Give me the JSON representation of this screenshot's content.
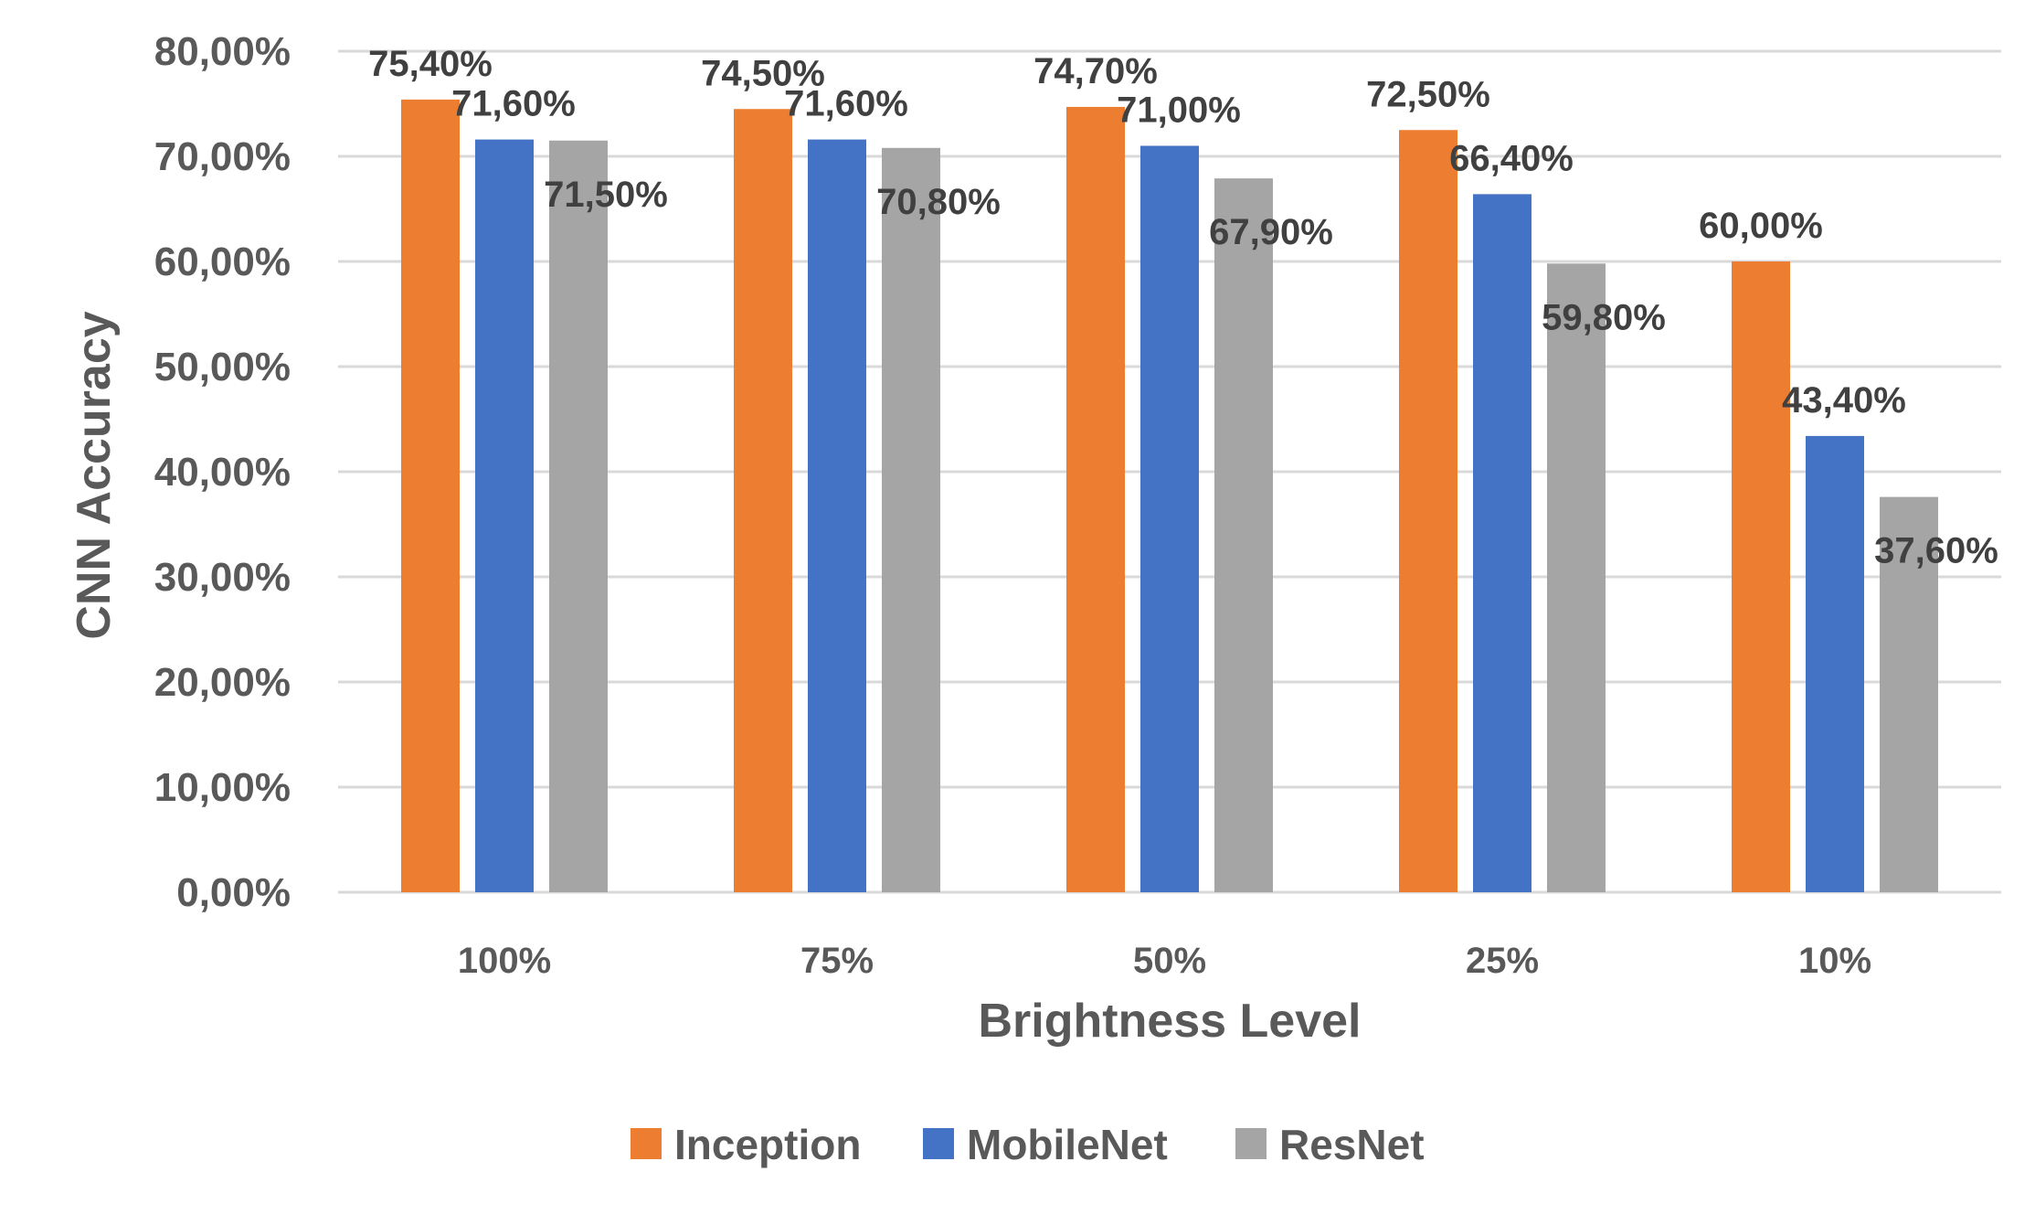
{
  "chart_data": {
    "type": "bar",
    "title": "",
    "xlabel": "Brightness Level",
    "ylabel": "CNN Accuracy",
    "ylim": [
      0,
      80
    ],
    "y_ticks": [
      "0,00%",
      "10,00%",
      "20,00%",
      "30,00%",
      "40,00%",
      "50,00%",
      "60,00%",
      "70,00%",
      "80,00%"
    ],
    "categories": [
      "100%",
      "75%",
      "50%",
      "25%",
      "10%"
    ],
    "grid": true,
    "legend_position": "bottom",
    "series": [
      {
        "name": "Inception",
        "color": "#ED7D31",
        "values": [
          75.4,
          74.5,
          74.7,
          72.5,
          60.0
        ],
        "labels": [
          "75,40%",
          "74,50%",
          "74,70%",
          "72,50%",
          "60,00%"
        ]
      },
      {
        "name": "MobileNet",
        "color": "#4472C4",
        "values": [
          71.6,
          71.6,
          71.0,
          66.4,
          43.4
        ],
        "labels": [
          "71,60%",
          "71,60%",
          "71,00%",
          "66,40%",
          "43,40%"
        ]
      },
      {
        "name": "ResNet",
        "color": "#A5A5A5",
        "values": [
          71.5,
          70.8,
          67.9,
          59.8,
          37.6
        ],
        "labels": [
          "71,50%",
          "70,80%",
          "67,90%",
          "59,80%",
          "37,60%"
        ]
      }
    ]
  }
}
